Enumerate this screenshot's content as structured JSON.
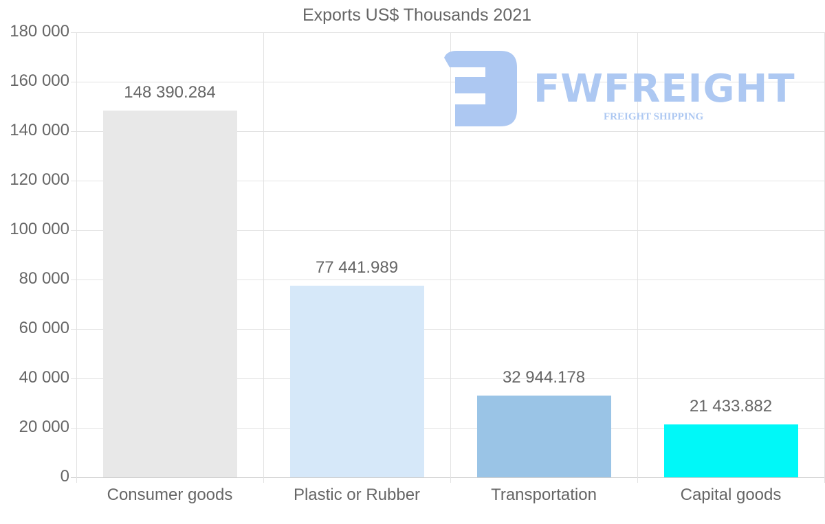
{
  "chart_data": {
    "type": "bar",
    "title": "Exports US$ Thousands 2021",
    "categories": [
      "Consumer goods",
      "Plastic or Rubber",
      "Transportation",
      "Capital goods"
    ],
    "values": [
      148390.284,
      77441.989,
      32944.178,
      21433.882
    ],
    "value_labels": [
      "148 390.284",
      "77 441.989",
      "32 944.178",
      "21 433.882"
    ],
    "colors": [
      "#e8e8e8",
      "#d6e8f9",
      "#9ac4e6",
      "#00f8f8"
    ],
    "xlabel": "",
    "ylabel": "",
    "ylim": [
      0,
      180000
    ],
    "yticks": [
      0,
      20000,
      40000,
      60000,
      80000,
      100000,
      120000,
      140000,
      160000,
      180000
    ],
    "ytick_labels": [
      "0",
      "20 000",
      "40 000",
      "60 000",
      "80 000",
      "100 000",
      "120 000",
      "140 000",
      "160 000",
      "180 000"
    ],
    "grid": true,
    "legend": null
  },
  "watermark": {
    "brand": "FWFREIGHT",
    "tagline": "FREIGHT SHIPPING",
    "color": "#adc8f2"
  }
}
